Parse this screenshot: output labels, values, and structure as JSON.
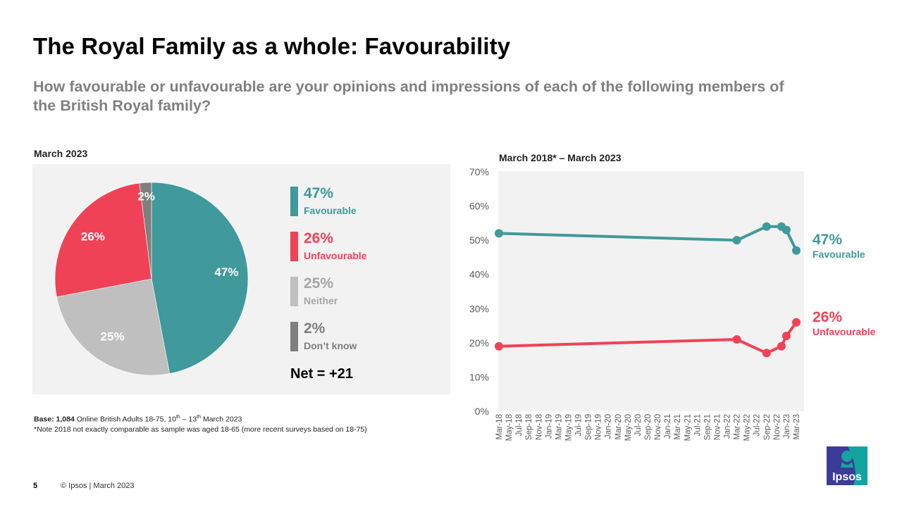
{
  "header": {
    "title": "The Royal Family as a whole: Favourability",
    "subtitle": "How favourable or unfavourable are your opinions and impressions of each of the following members of the British Royal family?"
  },
  "colors": {
    "favourable": "#40999a",
    "unfavourable": "#f04256",
    "neither": "#bfbfbf",
    "dont_know": "#7f7f7f",
    "panel_bg": "#f2f2f2"
  },
  "pie_section": {
    "caption": "March 2023",
    "legend": [
      {
        "value": "47%",
        "label": "Favourable",
        "color": "#40999a",
        "text_color": "#40999a"
      },
      {
        "value": "26%",
        "label": "Unfavourable",
        "color": "#f04256",
        "text_color": "#f04256"
      },
      {
        "value": "25%",
        "label": "Neither",
        "color": "#bfbfbf",
        "text_color": "#a6a6a6"
      },
      {
        "value": "2%",
        "label": "Don’t know",
        "color": "#7f7f7f",
        "text_color": "#7f7f7f"
      }
    ],
    "net": "Net = +21"
  },
  "line_section": {
    "caption": "March 2018* – March 2023",
    "end_labels": {
      "favourable": {
        "value": "47%",
        "label": "Favourable"
      },
      "unfavourable": {
        "value": "26%",
        "label": "Unfavourable"
      }
    }
  },
  "notes": {
    "base_label": "Base:",
    "base_count": "1,084",
    "base_text_a": " Online British Adults 18-75, 10",
    "sup1": "th",
    "base_text_b": " – 13",
    "sup2": "th",
    "base_text_c": " March 2023",
    "note": "*Note 2018 not exactly comparable as sample  was aged 18-65 (more recent surveys based on 18-75)"
  },
  "footer": {
    "page_number": "5",
    "copyright": "© Ipsos | March 2023",
    "logo_text": "Ipsos"
  },
  "chart_data": [
    {
      "type": "pie",
      "title": "March 2023",
      "categories": [
        "Favourable",
        "Neither",
        "Unfavourable",
        "Don't know"
      ],
      "values": [
        47,
        25,
        26,
        2
      ],
      "labels": [
        "47%",
        "25%",
        "26%",
        "2%"
      ],
      "colors": [
        "#40999a",
        "#bfbfbf",
        "#f04256",
        "#7f7f7f"
      ],
      "start": "12 o'clock, clockwise"
    },
    {
      "type": "line",
      "title": "March 2018* – March 2023",
      "xlabel": "",
      "ylabel": "",
      "ylim": [
        0,
        70
      ],
      "yticks": [
        "0%",
        "10%",
        "20%",
        "30%",
        "40%",
        "50%",
        "60%",
        "70%"
      ],
      "ytick_values": [
        0,
        10,
        20,
        30,
        40,
        50,
        60,
        70
      ],
      "xlim_months": [
        0,
        60
      ],
      "xticks": [
        "Mar-18",
        "May-18",
        "Jul-18",
        "Sep-18",
        "Nov-18",
        "Jan-19",
        "Mar-19",
        "May-19",
        "Jul-19",
        "Sep-19",
        "Nov-19",
        "Jan-20",
        "Mar-20",
        "May-20",
        "Jul-20",
        "Sep-20",
        "Nov-20",
        "Jan-21",
        "Mar-21",
        "May-21",
        "Jul-21",
        "Sep-21",
        "Nov-21",
        "Jan-22",
        "Mar-22",
        "May-22",
        "Jul-22",
        "Sep-22",
        "Nov-22",
        "Jan-23",
        "Mar-23"
      ],
      "x_months_since_mar18": [
        0,
        48,
        54,
        57,
        58,
        60
      ],
      "x": [
        "Mar-18",
        "Mar-22",
        "Sep-22",
        "Dec-22",
        "Jan-23",
        "Mar-23"
      ],
      "series": [
        {
          "name": "Favourable",
          "color": "#40999a",
          "values": [
            52,
            50,
            54,
            54,
            53,
            47
          ]
        },
        {
          "name": "Unfavourable",
          "color": "#f04256",
          "values": [
            19,
            21,
            17,
            19,
            22,
            26
          ]
        }
      ],
      "legend": "right, end-of-line labels",
      "grid": false
    }
  ]
}
